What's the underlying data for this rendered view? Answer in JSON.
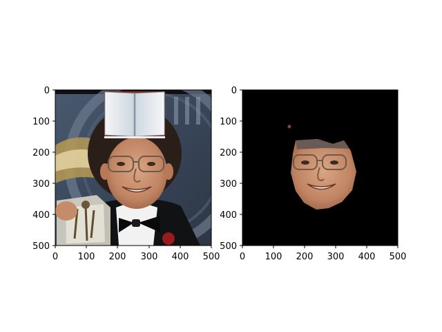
{
  "figure": {
    "background": "#ffffff",
    "subplots": [
      {
        "content": "photo",
        "description_icon": "portrait-photo-with-book-overlay",
        "xticks": [
          "0",
          "100",
          "200",
          "300",
          "400",
          "500"
        ],
        "yticks": [
          "0",
          "100",
          "200",
          "300",
          "400",
          "500"
        ]
      },
      {
        "content": "segmented-face",
        "background_color": "#000000",
        "xticks": [
          "0",
          "100",
          "200",
          "300",
          "400",
          "500"
        ],
        "yticks": [
          "0",
          "100",
          "200",
          "300",
          "400",
          "500"
        ]
      }
    ]
  }
}
